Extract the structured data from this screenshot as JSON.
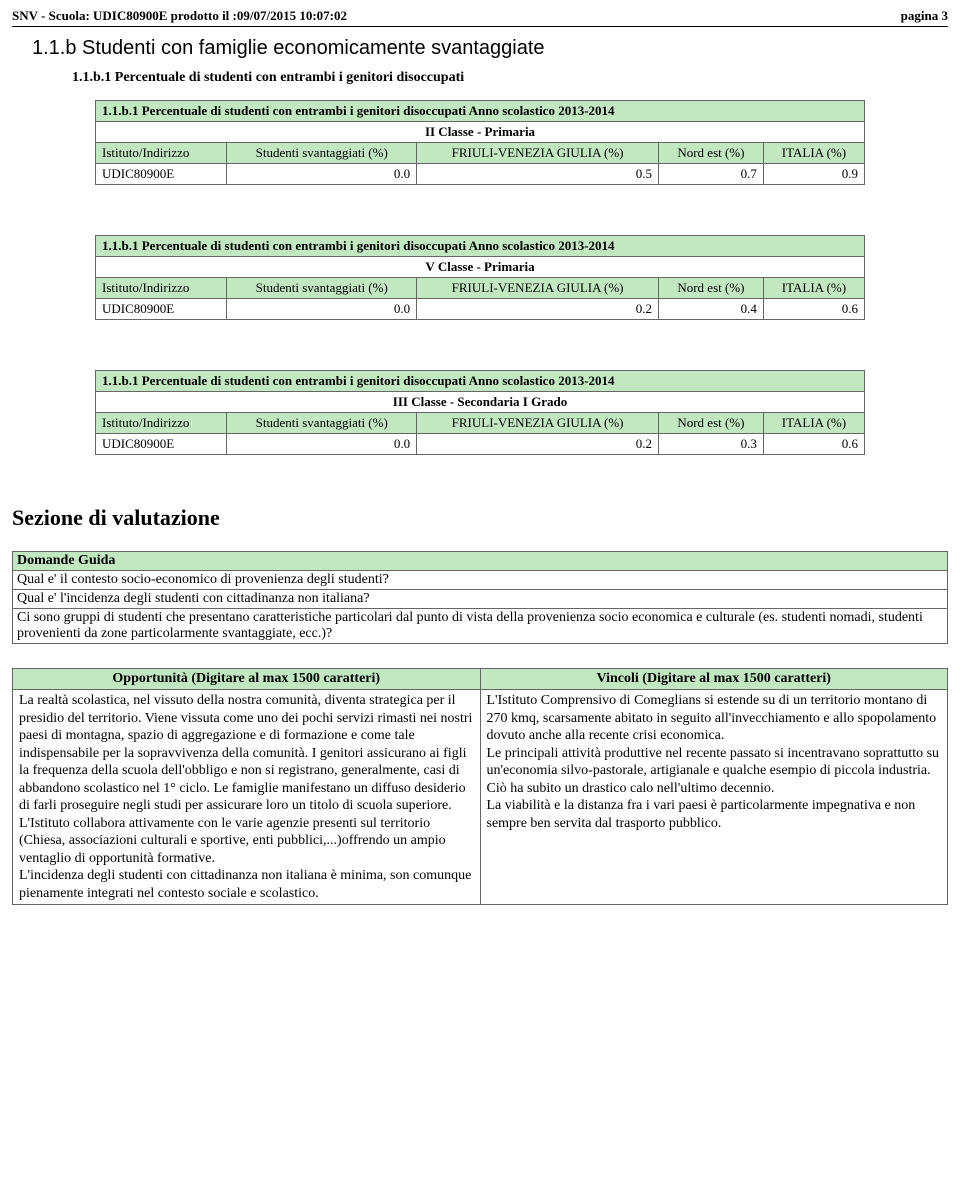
{
  "header": {
    "left": "SNV - Scuola: UDIC80900E prodotto il :09/07/2015 10:07:02",
    "right": "pagina 3"
  },
  "section": {
    "title": "1.1.b Studenti con famiglie economicamente svantaggiate",
    "subtitle": "1.1.b.1 Percentuale di studenti con entrambi i genitori disoccupati"
  },
  "tables": [
    {
      "title": "1.1.b.1 Percentuale di studenti con entrambi i genitori disoccupati Anno scolastico 2013-2014",
      "class": "II Classe - Primaria",
      "columns": [
        "Istituto/Indirizzo",
        "Studenti svantaggiati (%)",
        "FRIULI-VENEZIA GIULIA (%)",
        "Nord est (%)",
        "ITALIA (%)"
      ],
      "rows": [
        [
          "UDIC80900E",
          "0.0",
          "0.5",
          "0.7",
          "0.9"
        ]
      ]
    },
    {
      "title": "1.1.b.1 Percentuale di studenti con entrambi i genitori disoccupati Anno scolastico 2013-2014",
      "class": "V Classe - Primaria",
      "columns": [
        "Istituto/Indirizzo",
        "Studenti svantaggiati (%)",
        "FRIULI-VENEZIA GIULIA (%)",
        "Nord est (%)",
        "ITALIA (%)"
      ],
      "rows": [
        [
          "UDIC80900E",
          "0.0",
          "0.2",
          "0.4",
          "0.6"
        ]
      ]
    },
    {
      "title": "1.1.b.1 Percentuale di studenti con entrambi i genitori disoccupati Anno scolastico 2013-2014",
      "class": "III Classe - Secondaria I Grado",
      "columns": [
        "Istituto/Indirizzo",
        "Studenti svantaggiati (%)",
        "FRIULI-VENEZIA GIULIA (%)",
        "Nord est (%)",
        "ITALIA (%)"
      ],
      "rows": [
        [
          "UDIC80900E",
          "0.0",
          "0.2",
          "0.3",
          "0.6"
        ]
      ]
    }
  ],
  "sezione": {
    "heading": "Sezione di valutazione",
    "guide": {
      "header": "Domande Guida",
      "rows": [
        "Qual e' il contesto socio-economico di provenienza degli studenti?",
        "Qual e' l'incidenza degli studenti con cittadinanza non italiana?",
        "Ci sono gruppi di studenti che presentano caratteristiche particolari dal punto di vista della provenienza socio economica e culturale (es. studenti nomadi, studenti provenienti da zone particolarmente svantaggiate, ecc.)?"
      ]
    },
    "ov": {
      "left_header": "Opportunità (Digitare al max 1500 caratteri)",
      "right_header": "Vincoli (Digitare al max 1500 caratteri)",
      "left_body": "La realtà scolastica, nel vissuto della nostra comunità, diventa strategica per il presidio del territorio. Viene vissuta come uno dei pochi servizi rimasti nei nostri paesi di montagna, spazio di aggregazione e di formazione e come tale indispensabile per la sopravvivenza della comunità. I genitori assicurano ai figli la frequenza della scuola dell'obbligo e non si registrano, generalmente, casi di abbandono scolastico nel 1° ciclo. Le famiglie manifestano un diffuso desiderio di farli proseguire negli studi per assicurare loro un titolo di scuola superiore. L'Istituto collabora attivamente con le varie agenzie presenti sul territorio (Chiesa, associazioni culturali e sportive, enti pubblici,...)offrendo un ampio ventaglio di opportunità formative.\nL'incidenza degli studenti con cittadinanza non italiana è minima, son comunque pienamente integrati nel contesto sociale e scolastico.",
      "right_body": "L'Istituto Comprensivo di Comeglians si estende su di un territorio montano di 270 kmq, scarsamente abitato in seguito all'invecchiamento e allo spopolamento dovuto anche alla recente crisi economica.\nLe principali attività produttive nel recente passato si incentravano soprattutto su un'economia silvo-pastorale, artigianale e qualche esempio di piccola industria. Ciò ha subito un drastico calo nell'ultimo decennio.\nLa viabilità e la distanza fra i vari paesi è particolarmente impegnativa e non sempre ben servita dal trasporto pubblico."
    }
  },
  "colors": {
    "header_bg": "#c1e8c1",
    "border": "#666666"
  }
}
